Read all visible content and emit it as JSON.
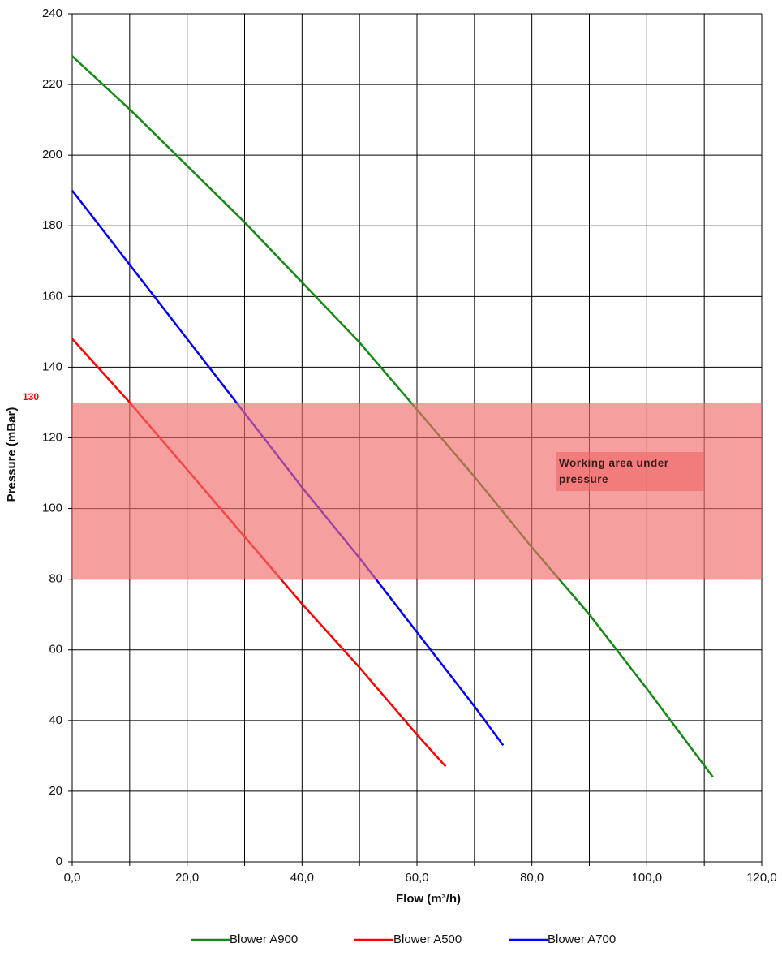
{
  "chart_data": {
    "type": "line",
    "xlabel": "Flow (m³/h)",
    "ylabel": "Pressure (mBar)",
    "xlim": [
      0,
      120
    ],
    "xticks": [
      {
        "value": 0,
        "label": "0,0"
      },
      {
        "value": 20,
        "label": "20,0"
      },
      {
        "value": 40,
        "label": "40,0"
      },
      {
        "value": 60,
        "label": "60,0"
      },
      {
        "value": 80,
        "label": "80,0"
      },
      {
        "value": 100,
        "label": "100,0"
      },
      {
        "value": 120,
        "label": "120,0"
      }
    ],
    "xgrid": [
      0,
      10,
      20,
      30,
      40,
      50,
      60,
      70,
      80,
      90,
      100,
      110,
      120
    ],
    "ylim": [
      0,
      240
    ],
    "yticks": [
      0,
      20,
      40,
      60,
      80,
      100,
      120,
      140,
      160,
      180,
      200,
      220,
      240
    ],
    "grid": true,
    "legend": "bottom",
    "band": {
      "from": 80,
      "to": 130,
      "color": "#f06b6b",
      "label": "Working area under pressure"
    },
    "series": [
      {
        "name": "Blower A900",
        "color": "#138a13",
        "x": [
          0,
          10,
          20,
          30,
          40,
          50,
          60,
          70,
          80,
          90,
          100,
          111.5
        ],
        "values": [
          228,
          213,
          197,
          181,
          164,
          147,
          128,
          109,
          89,
          70,
          49,
          24
        ]
      },
      {
        "name": "Blower A500",
        "color": "#ff0000",
        "x": [
          0,
          10,
          20,
          30,
          40,
          50,
          60,
          65
        ],
        "values": [
          148,
          130,
          111,
          92,
          73,
          55,
          36,
          27
        ]
      },
      {
        "name": "Blower A700",
        "color": "#0000ff",
        "x": [
          0,
          10,
          20,
          30,
          40,
          50,
          60,
          70,
          75
        ],
        "values": [
          190,
          169,
          148,
          127,
          106,
          86,
          65,
          44,
          33
        ]
      }
    ]
  }
}
